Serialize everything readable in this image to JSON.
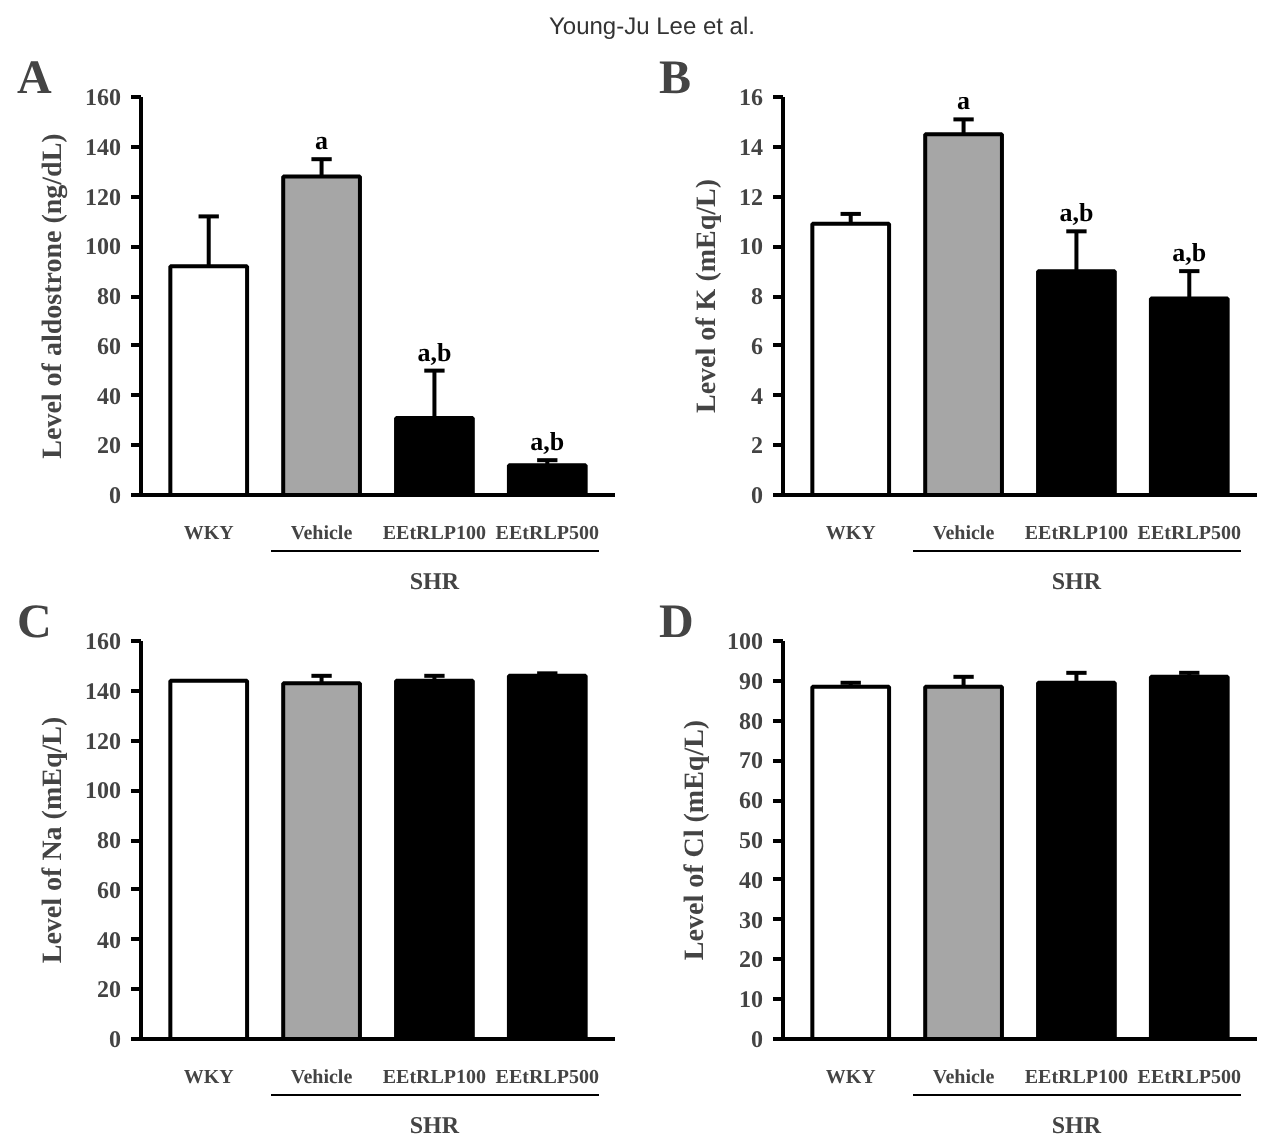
{
  "chart_data": [
    {
      "type": "bar",
      "title": "A",
      "ylabel": "Level of aldostrone (ng/dL)",
      "categories": [
        "WKY",
        "Vehicle",
        "EEtRLP100",
        "EEtRLP500"
      ],
      "values": [
        92,
        128,
        31,
        12
      ],
      "colors": [
        "#ffffff",
        "#a6a6a6",
        "#000000",
        "#000000"
      ],
      "errors": [
        [
          92,
          112
        ],
        [
          128,
          135
        ],
        [
          31,
          50
        ],
        [
          12,
          14
        ]
      ],
      "ylim": [
        0,
        160
      ],
      "yticks": [
        0,
        20,
        40,
        60,
        80,
        100,
        120,
        140,
        160
      ],
      "grid": false,
      "annotations": [
        "Young-Ju Lee et al.",
        "SHR",
        {
          "text": "a",
          "x": "Vehicle",
          "y": 135
        },
        {
          "text": "a,b",
          "x": "EEtRLP100",
          "y": 50
        },
        {
          "text": "a,b",
          "x": "EEtRLP500",
          "y": 14
        }
      ]
    },
    {
      "type": "bar",
      "title": "B",
      "ylabel": "Level of K (mEq/L)",
      "categories": [
        "WKY",
        "Vehicle",
        "EEtRLP100",
        "EEtRLP500"
      ],
      "values": [
        10.9,
        14.5,
        9.0,
        7.9
      ],
      "colors": [
        "#ffffff",
        "#a6a6a6",
        "#000000",
        "#000000"
      ],
      "errors": [
        [
          10.9,
          11.3
        ],
        [
          14.5,
          15.1
        ],
        [
          9.0,
          10.6
        ],
        [
          7.9,
          9.0
        ]
      ],
      "ylim": [
        0,
        16
      ],
      "yticks": [
        0,
        2,
        4,
        6,
        8,
        10,
        12,
        14,
        16
      ],
      "grid": false,
      "annotations": [
        "SHR",
        {
          "text": "a",
          "x": "Vehicle",
          "y": 15.1
        },
        {
          "text": "a,b",
          "x": "EEtRLP100",
          "y": 10.6
        },
        {
          "text": "a,b",
          "x": "EEtRLP500",
          "y": 9.0
        }
      ]
    },
    {
      "type": "bar",
      "title": "C",
      "ylabel": "Level of Na (mEq/L)",
      "categories": [
        "WKY",
        "Vehicle",
        "EEtRLP100",
        "EEtRLP500"
      ],
      "values": [
        144,
        143,
        144,
        146
      ],
      "colors": [
        "#ffffff",
        "#a6a6a6",
        "#000000",
        "#000000"
      ],
      "errors": [
        null,
        [
          143,
          146
        ],
        [
          144,
          146
        ],
        [
          146,
          147
        ]
      ],
      "ylim": [
        0,
        160
      ],
      "yticks": [
        0,
        20,
        40,
        60,
        80,
        100,
        120,
        140,
        160
      ],
      "grid": false,
      "annotations": [
        "SHR"
      ]
    },
    {
      "type": "bar",
      "title": "D",
      "ylabel": "Level of Cl (mEq/L)",
      "categories": [
        "WKY",
        "Vehicle",
        "EEtRLP100",
        "EEtRLP500"
      ],
      "values": [
        88.5,
        88.5,
        89.5,
        91
      ],
      "colors": [
        "#ffffff",
        "#a6a6a6",
        "#000000",
        "#000000"
      ],
      "errors": [
        [
          88.5,
          89.5
        ],
        [
          88.5,
          91
        ],
        [
          89.5,
          92
        ],
        [
          91,
          92
        ]
      ],
      "ylim": [
        0,
        100
      ],
      "yticks": [
        0,
        10,
        20,
        30,
        40,
        50,
        60,
        70,
        80,
        90,
        100
      ],
      "grid": false,
      "annotations": [
        "SHR"
      ]
    }
  ]
}
